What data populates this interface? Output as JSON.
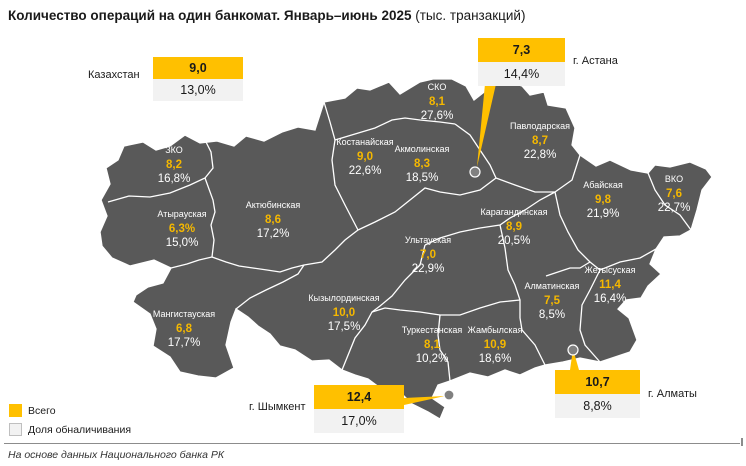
{
  "title": {
    "bold": "Количество операций на один банкомат. Январь–июнь 2025",
    "normal": " (тыс. транзакций)"
  },
  "colors": {
    "map_fill": "#595959",
    "total": "#ffc000",
    "cash_share_box": "#f2f2f2",
    "border": "#ffffff"
  },
  "regions": [
    {
      "name": "СКО",
      "total": "8,1",
      "cash_share": "27,6%"
    },
    {
      "name": "Костанайская",
      "total": "9,0",
      "cash_share": "22,6%"
    },
    {
      "name": "Акмолинская",
      "total": "8,3",
      "cash_share": "18,5%"
    },
    {
      "name": "Павлодарская",
      "total": "8,7",
      "cash_share": "22,8%"
    },
    {
      "name": "ЗКО",
      "total": "8,2",
      "cash_share": "16,8%"
    },
    {
      "name": "Атырауская",
      "total": "6,3%",
      "cash_share": "15,0%"
    },
    {
      "name": "Актюбинская",
      "total": "8,6",
      "cash_share": "17,2%"
    },
    {
      "name": "Ультауская",
      "total": "7,0",
      "cash_share": "22,9%"
    },
    {
      "name": "Карагандинская",
      "total": "8,9",
      "cash_share": "20,5%"
    },
    {
      "name": "Абайская",
      "total": "9,8",
      "cash_share": "21,9%"
    },
    {
      "name": "ВКО",
      "total": "7,6",
      "cash_share": "22,7%"
    },
    {
      "name": "Мангистауская",
      "total": "6,8",
      "cash_share": "17,7%"
    },
    {
      "name": "Кызылординская",
      "total": "10,0",
      "cash_share": "17,5%"
    },
    {
      "name": "Туркестанская",
      "total": "8,1",
      "cash_share": "10,2%"
    },
    {
      "name": "Жамбылская",
      "total": "10,9",
      "cash_share": "18,6%"
    },
    {
      "name": "Алматинская",
      "total": "7,5",
      "cash_share": "8,5%"
    },
    {
      "name": "Жетысуская",
      "total": "11,4",
      "cash_share": "16,4%"
    }
  ],
  "kazakhstan": {
    "name": "Казахстан",
    "total": "9,0",
    "cash_share": "13,0%"
  },
  "cities": [
    {
      "name": "г. Астана",
      "total": "7,3",
      "cash_share": "14,4%"
    },
    {
      "name": "г. Шымкент",
      "total": "12,4",
      "cash_share": "17,0%"
    },
    {
      "name": "г. Алматы",
      "total": "10,7",
      "cash_share": "8,8%"
    }
  ],
  "legend": {
    "total": "Всего",
    "cash_share": "Доля обналичивания"
  },
  "source": "На основе данных Национального банка РК"
}
